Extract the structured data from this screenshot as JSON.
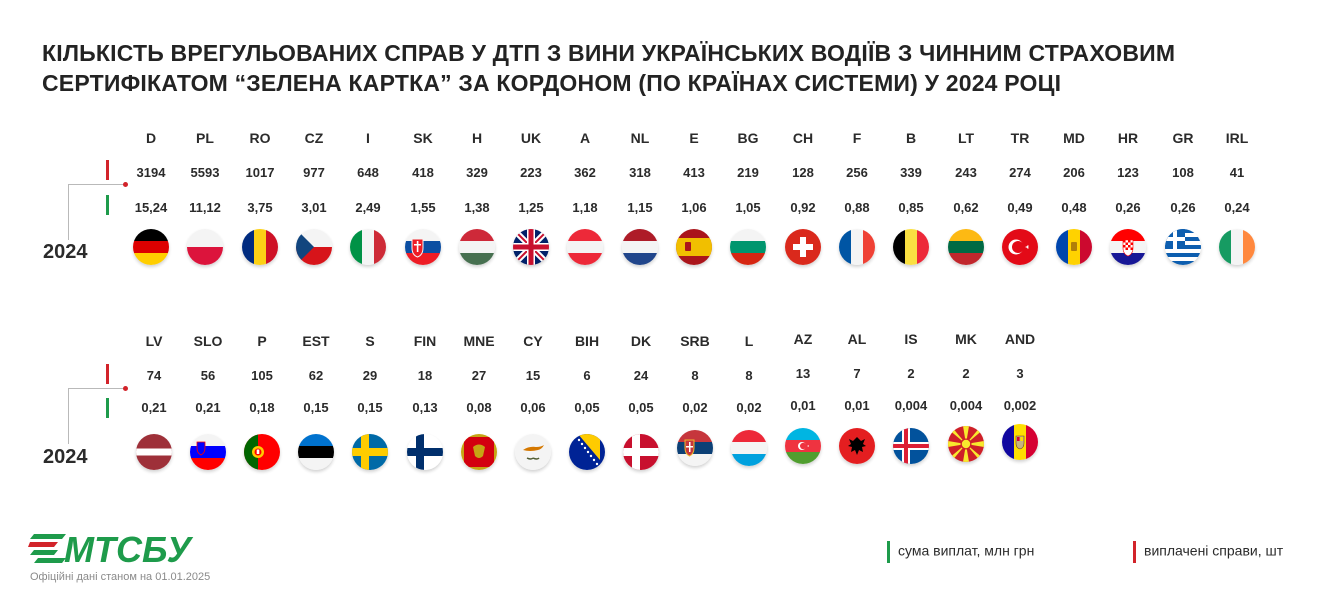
{
  "title": "КІЛЬКІСТЬ ВРЕГУЛЬОВАНИХ СПРАВ У ДТП З ВИНИ УКРАЇНСЬКИХ ВОДІЇВ З ЧИННИМ СТРАХОВИМ СЕРТИФІКАТОМ “ЗЕЛЕНА КАРТКА” ЗА КОРДОНОМ (ПО КРАЇНАХ СИСТЕМИ) У 2024 РОЦІ",
  "year_label": "2024",
  "colors": {
    "cases_marker": "#d2232a",
    "amount_marker": "#1e9b4b",
    "brand_green": "#1e9b4b",
    "brand_red": "#d2232a"
  },
  "legend": {
    "amount": "сума виплат, млн грн",
    "cases": "виплачені справи, шт"
  },
  "logo_text": "МТСБУ",
  "footnote": "Офіційні дані станом на 01.01.2025",
  "chart_data": {
    "type": "table",
    "series": [
      {
        "name": "виплачені справи, шт",
        "key": "cases"
      },
      {
        "name": "сума виплат, млн грн",
        "key": "amount"
      }
    ],
    "rows": [
      [
        {
          "code": "D",
          "cases": "3194",
          "amount": "15,24",
          "flag": "de"
        },
        {
          "code": "PL",
          "cases": "5593",
          "amount": "11,12",
          "flag": "pl"
        },
        {
          "code": "RO",
          "cases": "1017",
          "amount": "3,75",
          "flag": "ro"
        },
        {
          "code": "CZ",
          "cases": "977",
          "amount": "3,01",
          "flag": "cz"
        },
        {
          "code": "I",
          "cases": "648",
          "amount": "2,49",
          "flag": "it"
        },
        {
          "code": "SK",
          "cases": "418",
          "amount": "1,55",
          "flag": "sk"
        },
        {
          "code": "H",
          "cases": "329",
          "amount": "1,38",
          "flag": "hu"
        },
        {
          "code": "UK",
          "cases": "223",
          "amount": "1,25",
          "flag": "uk"
        },
        {
          "code": "A",
          "cases": "362",
          "amount": "1,18",
          "flag": "at"
        },
        {
          "code": "NL",
          "cases": "318",
          "amount": "1,15",
          "flag": "nl"
        },
        {
          "code": "E",
          "cases": "413",
          "amount": "1,06",
          "flag": "es"
        },
        {
          "code": "BG",
          "cases": "219",
          "amount": "1,05",
          "flag": "bg"
        },
        {
          "code": "CH",
          "cases": "128",
          "amount": "0,92",
          "flag": "ch"
        },
        {
          "code": "F",
          "cases": "256",
          "amount": "0,88",
          "flag": "fr"
        },
        {
          "code": "B",
          "cases": "339",
          "amount": "0,85",
          "flag": "be"
        },
        {
          "code": "LT",
          "cases": "243",
          "amount": "0,62",
          "flag": "lt"
        },
        {
          "code": "TR",
          "cases": "274",
          "amount": "0,49",
          "flag": "tr"
        },
        {
          "code": "MD",
          "cases": "206",
          "amount": "0,48",
          "flag": "md"
        },
        {
          "code": "HR",
          "cases": "123",
          "amount": "0,26",
          "flag": "hr"
        },
        {
          "code": "GR",
          "cases": "108",
          "amount": "0,26",
          "flag": "gr"
        },
        {
          "code": "IRL",
          "cases": "41",
          "amount": "0,24",
          "flag": "ie"
        }
      ],
      [
        {
          "code": "LV",
          "cases": "74",
          "amount": "0,21",
          "flag": "lv"
        },
        {
          "code": "SLO",
          "cases": "56",
          "amount": "0,21",
          "flag": "si"
        },
        {
          "code": "P",
          "cases": "105",
          "amount": "0,18",
          "flag": "pt"
        },
        {
          "code": "EST",
          "cases": "62",
          "amount": "0,15",
          "flag": "ee"
        },
        {
          "code": "S",
          "cases": "29",
          "amount": "0,15",
          "flag": "se"
        },
        {
          "code": "FIN",
          "cases": "18",
          "amount": "0,13",
          "flag": "fi"
        },
        {
          "code": "MNE",
          "cases": "27",
          "amount": "0,08",
          "flag": "me"
        },
        {
          "code": "CY",
          "cases": "15",
          "amount": "0,06",
          "flag": "cy"
        },
        {
          "code": "BIH",
          "cases": "6",
          "amount": "0,05",
          "flag": "ba"
        },
        {
          "code": "DK",
          "cases": "24",
          "amount": "0,05",
          "flag": "dk"
        },
        {
          "code": "SRB",
          "cases": "8",
          "amount": "0,02",
          "flag": "rs"
        },
        {
          "code": "L",
          "cases": "8",
          "amount": "0,02",
          "flag": "lu"
        },
        {
          "code": "AZ",
          "cases": "13",
          "amount": "0,01",
          "flag": "az"
        },
        {
          "code": "AL",
          "cases": "7",
          "amount": "0,01",
          "flag": "al"
        },
        {
          "code": "IS",
          "cases": "2",
          "amount": "0,004",
          "flag": "is"
        },
        {
          "code": "MK",
          "cases": "2",
          "amount": "0,004",
          "flag": "mk"
        },
        {
          "code": "AND",
          "cases": "3",
          "amount": "0,002",
          "flag": "ad"
        }
      ]
    ]
  }
}
